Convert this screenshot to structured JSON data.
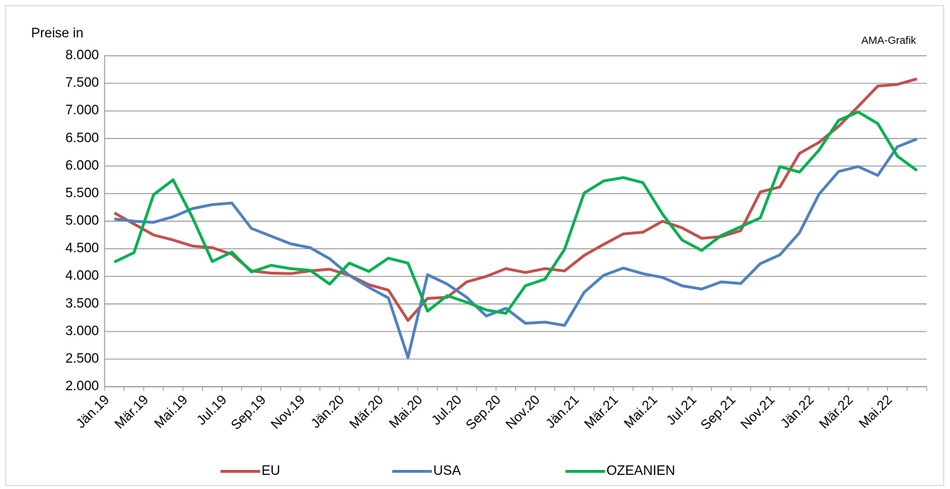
{
  "chart_data": {
    "type": "line",
    "title": "Preise in",
    "annotation": "AMA-Grafik",
    "categories": [
      "Jän.19",
      null,
      "Mär.19",
      null,
      "Mai.19",
      null,
      "Jul.19",
      null,
      "Sep.19",
      null,
      "Nov.19",
      null,
      "Jän.20",
      null,
      "Mär.20",
      null,
      "Mai.20",
      null,
      "Jul.20",
      null,
      "Sep.20",
      null,
      "Nov.20",
      null,
      "Jän.21",
      null,
      "Mär.21",
      null,
      "Mai.21",
      null,
      "Jul.21",
      null,
      "Sep.21",
      null,
      "Nov.21",
      null,
      "Jän.22",
      null,
      "Mär.22",
      null,
      "Mai.22",
      null
    ],
    "series": [
      {
        "name": "EU",
        "color": "#c0504d",
        "values": [
          5150,
          4950,
          4750,
          4660,
          4550,
          4520,
          4400,
          4100,
          4060,
          4050,
          4100,
          4130,
          4020,
          3850,
          3750,
          3200,
          3600,
          3620,
          3900,
          4000,
          4140,
          4070,
          4140,
          4100,
          4380,
          4580,
          4770,
          4800,
          5000,
          4880,
          4690,
          4720,
          4830,
          5530,
          5620,
          6230,
          6430,
          6720,
          7080,
          7450,
          7480,
          7580
        ]
      },
      {
        "name": "USA",
        "color": "#4f81bd",
        "values": [
          5040,
          5000,
          4980,
          5080,
          5230,
          5300,
          5330,
          4870,
          4730,
          4590,
          4520,
          4320,
          4020,
          3800,
          3610,
          2530,
          4030,
          3860,
          3620,
          3280,
          3420,
          3150,
          3170,
          3110,
          3710,
          4020,
          4150,
          4050,
          3980,
          3830,
          3770,
          3900,
          3870,
          4230,
          4390,
          4790,
          5490,
          5900,
          5990,
          5830,
          6350,
          6490
        ]
      },
      {
        "name": "OZEANIEN",
        "color": "#00b050",
        "values": [
          4260,
          4430,
          5480,
          5750,
          5060,
          4270,
          4440,
          4080,
          4200,
          4140,
          4110,
          3860,
          4240,
          4090,
          4330,
          4240,
          3370,
          3650,
          3530,
          3390,
          3330,
          3830,
          3950,
          4490,
          5510,
          5730,
          5790,
          5700,
          5130,
          4660,
          4470,
          4740,
          4900,
          5060,
          5990,
          5890,
          6290,
          6830,
          6980,
          6770,
          6180,
          5920
        ]
      }
    ],
    "ylim": [
      2000,
      8000
    ],
    "yticks": [
      {
        "value": 2000,
        "label": "2.000"
      },
      {
        "value": 2500,
        "label": "2.500"
      },
      {
        "value": 3000,
        "label": "3.000"
      },
      {
        "value": 3500,
        "label": "3.500"
      },
      {
        "value": 4000,
        "label": "4.000"
      },
      {
        "value": 4500,
        "label": "4.500"
      },
      {
        "value": 5000,
        "label": "5.000"
      },
      {
        "value": 5500,
        "label": "5.500"
      },
      {
        "value": 6000,
        "label": "6.000"
      },
      {
        "value": 6500,
        "label": "6.500"
      },
      {
        "value": 7000,
        "label": "7.000"
      },
      {
        "value": 7500,
        "label": "7.500"
      },
      {
        "value": 8000,
        "label": "8.000"
      }
    ],
    "grid": true
  }
}
